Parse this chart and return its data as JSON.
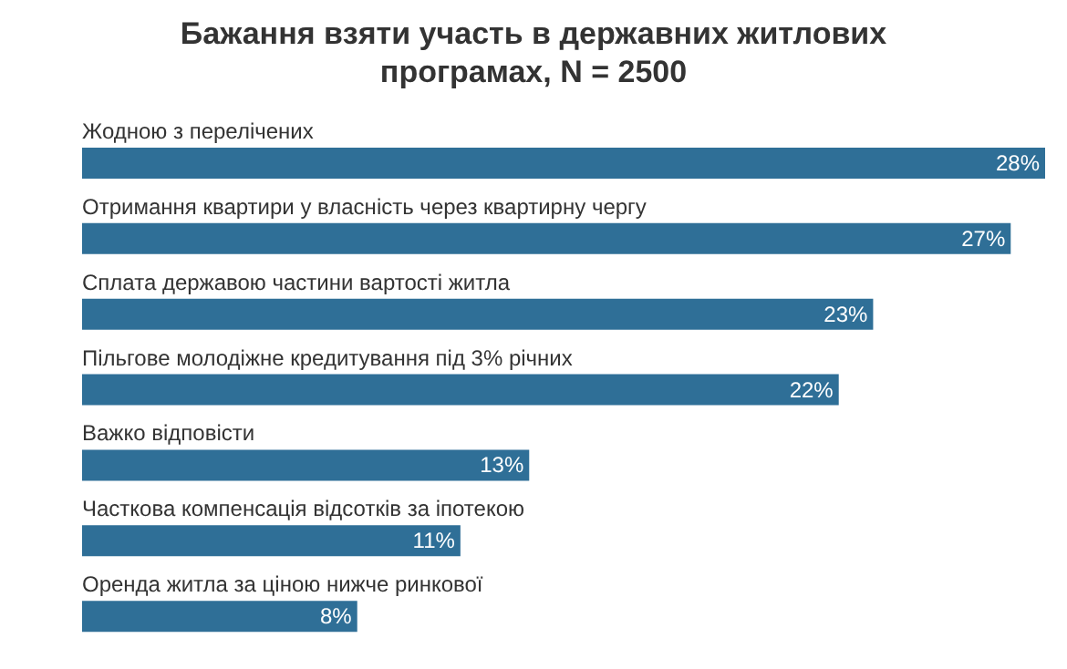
{
  "chart_data": {
    "type": "bar",
    "orientation": "horizontal",
    "title": "Бажання взяти участь в державних житлових програмах, N = 2500",
    "categories": [
      "Жодною з перелічених",
      "Отримання квартири у власність через квартирну чергу",
      "Сплата державою частини вартості житла",
      "Пільгове молодіжне кредитування під 3% річних",
      "Важко відповісти",
      "Часткова компенсація відсотків за іпотекою",
      "Оренда житла за ціною нижче ринкової"
    ],
    "values": [
      28,
      27,
      23,
      22,
      13,
      11,
      8
    ],
    "value_labels": [
      "28%",
      "27%",
      "23%",
      "22%",
      "13%",
      "11%",
      "8%"
    ],
    "color": "#2f6f97"
  }
}
